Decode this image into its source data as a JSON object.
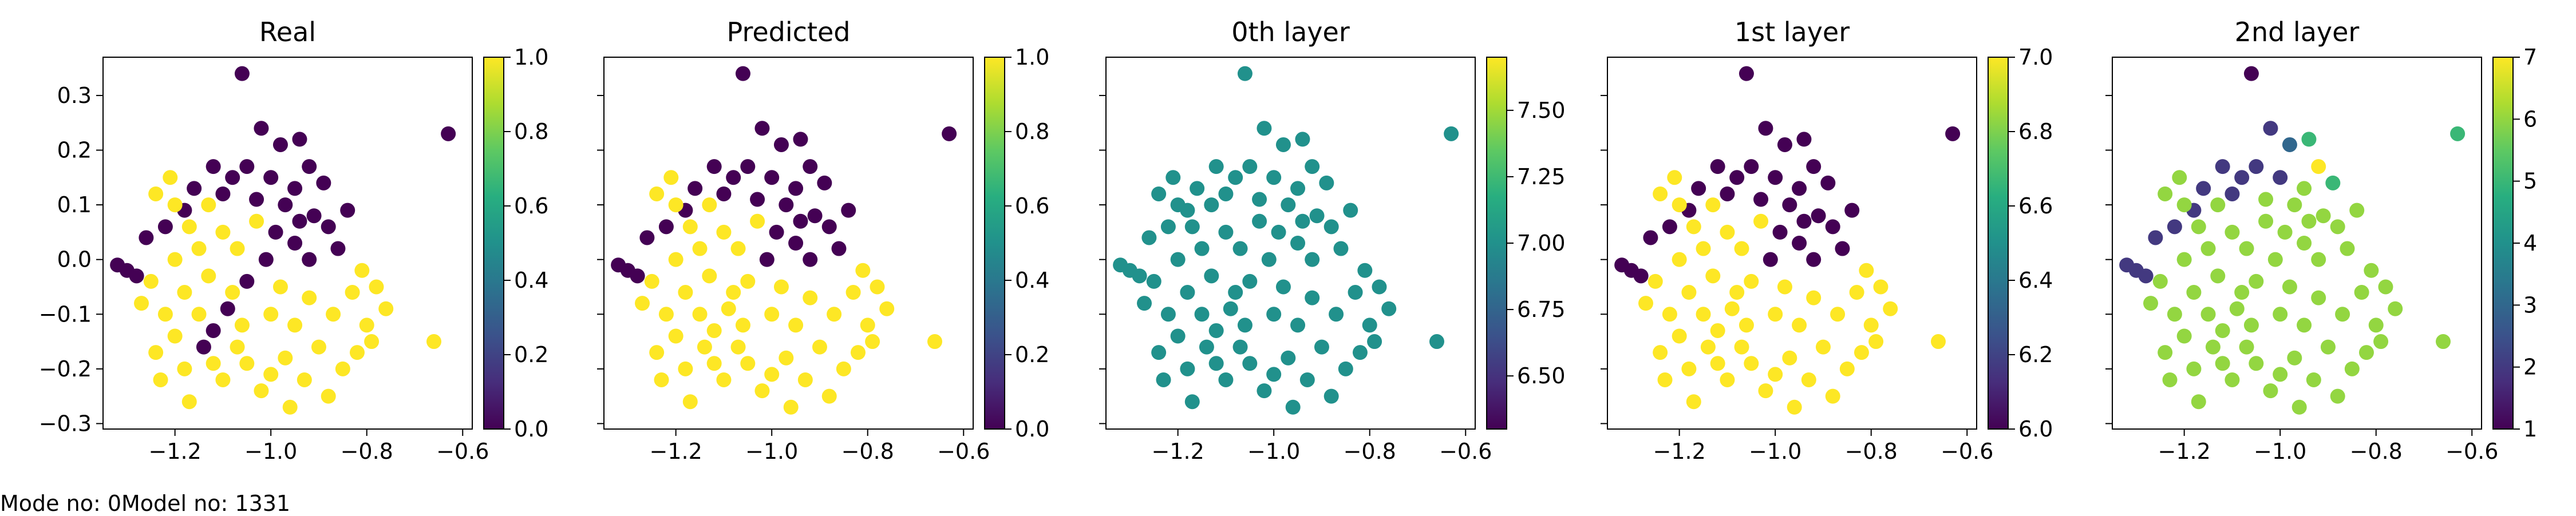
{
  "footer": {
    "mode_text": "Mode no: 0",
    "model_text": "Model no: 1331"
  },
  "chart_data": [
    {
      "type": "scatter",
      "title": "Real",
      "xlim": [
        -1.35,
        -0.58
      ],
      "ylim": [
        -0.31,
        0.37
      ],
      "xticks": [
        -1.2,
        -1.0,
        -0.8,
        -0.6
      ],
      "xtick_labels": [
        "−1.2",
        "−1.0",
        "−0.8",
        "−0.6"
      ],
      "yticks": [
        -0.3,
        -0.2,
        -0.1,
        0.0,
        0.1,
        0.2,
        0.3
      ],
      "ytick_labels": [
        "−0.3",
        "−0.2",
        "−0.1",
        "0.0",
        "0.1",
        "0.2",
        "0.3"
      ],
      "colorbar": {
        "range": [
          0.0,
          1.0
        ],
        "ticks": [
          0.0,
          0.2,
          0.4,
          0.6,
          0.8,
          1.0
        ],
        "tick_labels": [
          "0.0",
          "0.2",
          "0.4",
          "0.6",
          "0.8",
          "1.0"
        ]
      },
      "colormap": "viridis",
      "coloring": "real"
    },
    {
      "type": "scatter",
      "title": "Predicted",
      "xlim": [
        -1.35,
        -0.58
      ],
      "ylim": [
        -0.31,
        0.37
      ],
      "xticks": [
        -1.2,
        -1.0,
        -0.8,
        -0.6
      ],
      "xtick_labels": [
        "−1.2",
        "−1.0",
        "−0.8",
        "−0.6"
      ],
      "colorbar": {
        "range": [
          0.0,
          1.0
        ],
        "ticks": [
          0.0,
          0.2,
          0.4,
          0.6,
          0.8,
          1.0
        ],
        "tick_labels": [
          "0.0",
          "0.2",
          "0.4",
          "0.6",
          "0.8",
          "1.0"
        ]
      },
      "colormap": "viridis",
      "coloring": "predicted"
    },
    {
      "type": "scatter",
      "title": "0th layer",
      "xlim": [
        -1.35,
        -0.58
      ],
      "ylim": [
        -0.31,
        0.37
      ],
      "xticks": [
        -1.2,
        -1.0,
        -0.8,
        -0.6
      ],
      "xtick_labels": [
        "−1.2",
        "−1.0",
        "−0.8",
        "−0.6"
      ],
      "colorbar": {
        "range": [
          6.3,
          7.7
        ],
        "ticks": [
          6.5,
          6.75,
          7.0,
          7.25,
          7.5
        ],
        "tick_labels": [
          "6.50",
          "6.75",
          "7.00",
          "7.25",
          "7.50"
        ]
      },
      "colormap": "viridis",
      "coloring": "layer0"
    },
    {
      "type": "scatter",
      "title": "1st layer",
      "xlim": [
        -1.35,
        -0.58
      ],
      "ylim": [
        -0.31,
        0.37
      ],
      "xticks": [
        -1.2,
        -1.0,
        -0.8,
        -0.6
      ],
      "xtick_labels": [
        "−1.2",
        "−1.0",
        "−0.8",
        "−0.6"
      ],
      "colorbar": {
        "range": [
          6.0,
          7.0
        ],
        "ticks": [
          6.0,
          6.2,
          6.4,
          6.6,
          6.8,
          7.0
        ],
        "tick_labels": [
          "6.0",
          "6.2",
          "6.4",
          "6.6",
          "6.8",
          "7.0"
        ]
      },
      "colormap": "viridis",
      "coloring": "layer1"
    },
    {
      "type": "scatter",
      "title": "2nd layer",
      "xlim": [
        -1.35,
        -0.58
      ],
      "ylim": [
        -0.31,
        0.37
      ],
      "xticks": [
        -1.2,
        -1.0,
        -0.8,
        -0.6
      ],
      "xtick_labels": [
        "−1.2",
        "−1.0",
        "−0.8",
        "−0.6"
      ],
      "colorbar": {
        "range": [
          1,
          7
        ],
        "ticks": [
          1,
          2,
          3,
          4,
          5,
          6,
          7
        ],
        "tick_labels": [
          "1",
          "2",
          "3",
          "4",
          "5",
          "6",
          "7"
        ]
      },
      "colormap": "viridis",
      "coloring": "layer2"
    }
  ],
  "points": [
    {
      "x": -1.06,
      "y": 0.34,
      "real": 0,
      "pred": 0,
      "l0": 7.0,
      "l1": 6.0,
      "l2": 1
    },
    {
      "x": -0.63,
      "y": 0.23,
      "real": 0,
      "pred": 0,
      "l0": 7.0,
      "l1": 6.0,
      "l2": 5
    },
    {
      "x": -0.94,
      "y": 0.22,
      "real": 0,
      "pred": 0,
      "l0": 7.0,
      "l1": 6.0,
      "l2": 5
    },
    {
      "x": -0.98,
      "y": 0.21,
      "real": 0,
      "pred": 0,
      "l0": 7.0,
      "l1": 6.0,
      "l2": 3
    },
    {
      "x": -1.02,
      "y": 0.24,
      "real": 0,
      "pred": 0,
      "l0": 7.0,
      "l1": 6.0,
      "l2": 2
    },
    {
      "x": -0.92,
      "y": 0.17,
      "real": 0,
      "pred": 0,
      "l0": 7.0,
      "l1": 6.0,
      "l2": 7
    },
    {
      "x": -0.89,
      "y": 0.14,
      "real": 0,
      "pred": 0,
      "l0": 7.0,
      "l1": 6.0,
      "l2": 5
    },
    {
      "x": -0.95,
      "y": 0.13,
      "real": 0,
      "pred": 0,
      "l0": 7.0,
      "l1": 6.0,
      "l2": 6
    },
    {
      "x": -1.0,
      "y": 0.15,
      "real": 0,
      "pred": 0,
      "l0": 7.0,
      "l1": 6.0,
      "l2": 2
    },
    {
      "x": -1.05,
      "y": 0.17,
      "real": 0,
      "pred": 0,
      "l0": 7.0,
      "l1": 6.0,
      "l2": 2
    },
    {
      "x": -1.08,
      "y": 0.15,
      "real": 0,
      "pred": 0,
      "l0": 7.0,
      "l1": 6.0,
      "l2": 2
    },
    {
      "x": -1.12,
      "y": 0.17,
      "real": 0,
      "pred": 0,
      "l0": 7.0,
      "l1": 6.0,
      "l2": 2
    },
    {
      "x": -1.1,
      "y": 0.12,
      "real": 0,
      "pred": 0,
      "l0": 7.0,
      "l1": 6.0,
      "l2": 2
    },
    {
      "x": -1.16,
      "y": 0.13,
      "real": 0,
      "pred": 0,
      "l0": 7.0,
      "l1": 6.0,
      "l2": 2
    },
    {
      "x": -1.18,
      "y": 0.09,
      "real": 0,
      "pred": 0,
      "l0": 7.0,
      "l1": 6.0,
      "l2": 2
    },
    {
      "x": -1.22,
      "y": 0.06,
      "real": 0,
      "pred": 0,
      "l0": 7.0,
      "l1": 6.0,
      "l2": 2
    },
    {
      "x": -1.26,
      "y": 0.04,
      "real": 0,
      "pred": 0,
      "l0": 7.0,
      "l1": 6.0,
      "l2": 2
    },
    {
      "x": -1.3,
      "y": -0.02,
      "real": 0,
      "pred": 0,
      "l0": 7.0,
      "l1": 6.0,
      "l2": 2
    },
    {
      "x": -1.32,
      "y": -0.01,
      "real": 0,
      "pred": 0,
      "l0": 7.0,
      "l1": 6.0,
      "l2": 2
    },
    {
      "x": -1.28,
      "y": -0.03,
      "real": 0,
      "pred": 0,
      "l0": 7.0,
      "l1": 6.0,
      "l2": 2
    },
    {
      "x": -0.94,
      "y": 0.07,
      "real": 0,
      "pred": 0,
      "l0": 7.0,
      "l1": 6.0,
      "l2": 6
    },
    {
      "x": -0.91,
      "y": 0.08,
      "real": 0,
      "pred": 0,
      "l0": 7.0,
      "l1": 6.0,
      "l2": 6
    },
    {
      "x": -0.88,
      "y": 0.06,
      "real": 0,
      "pred": 0,
      "l0": 7.0,
      "l1": 6.0,
      "l2": 6
    },
    {
      "x": -0.97,
      "y": 0.1,
      "real": 0,
      "pred": 0,
      "l0": 7.0,
      "l1": 6.0,
      "l2": 6
    },
    {
      "x": -1.03,
      "y": 0.11,
      "real": 0,
      "pred": 0,
      "l0": 7.0,
      "l1": 6.0,
      "l2": 6
    },
    {
      "x": -0.95,
      "y": 0.03,
      "real": 0,
      "pred": 0,
      "l0": 7.0,
      "l1": 6.0,
      "l2": 6
    },
    {
      "x": -0.99,
      "y": 0.05,
      "real": 0,
      "pred": 0,
      "l0": 7.0,
      "l1": 6.0,
      "l2": 6
    },
    {
      "x": -0.92,
      "y": 0.0,
      "real": 0,
      "pred": 0,
      "l0": 7.0,
      "l1": 6.0,
      "l2": 6
    },
    {
      "x": -1.01,
      "y": 0.0,
      "real": 0,
      "pred": 0,
      "l0": 7.0,
      "l1": 6.0,
      "l2": 6
    },
    {
      "x": -1.05,
      "y": -0.04,
      "real": 0,
      "pred": 1,
      "l0": 7.0,
      "l1": 7.0,
      "l2": 6
    },
    {
      "x": -1.09,
      "y": -0.09,
      "real": 0,
      "pred": 1,
      "l0": 7.0,
      "l1": 7.0,
      "l2": 6
    },
    {
      "x": -1.12,
      "y": -0.13,
      "real": 0,
      "pred": 1,
      "l0": 7.0,
      "l1": 7.0,
      "l2": 6
    },
    {
      "x": -1.14,
      "y": -0.16,
      "real": 0,
      "pred": 1,
      "l0": 7.0,
      "l1": 7.0,
      "l2": 6
    },
    {
      "x": -0.86,
      "y": 0.02,
      "real": 0,
      "pred": 0,
      "l0": 7.0,
      "l1": 6.0,
      "l2": 6
    },
    {
      "x": -0.84,
      "y": 0.09,
      "real": 0,
      "pred": 0,
      "l0": 7.0,
      "l1": 6.0,
      "l2": 6
    },
    {
      "x": -1.15,
      "y": 0.02,
      "real": 1,
      "pred": 1,
      "l0": 7.0,
      "l1": 7.0,
      "l2": 6
    },
    {
      "x": -1.2,
      "y": 0.0,
      "real": 1,
      "pred": 1,
      "l0": 7.0,
      "l1": 7.0,
      "l2": 6
    },
    {
      "x": -1.25,
      "y": -0.04,
      "real": 1,
      "pred": 1,
      "l0": 7.0,
      "l1": 7.0,
      "l2": 6
    },
    {
      "x": -1.27,
      "y": -0.08,
      "real": 1,
      "pred": 1,
      "l0": 7.0,
      "l1": 7.0,
      "l2": 6
    },
    {
      "x": -1.22,
      "y": -0.1,
      "real": 1,
      "pred": 1,
      "l0": 7.0,
      "l1": 7.0,
      "l2": 6
    },
    {
      "x": -1.18,
      "y": -0.06,
      "real": 1,
      "pred": 1,
      "l0": 7.0,
      "l1": 7.0,
      "l2": 6
    },
    {
      "x": -1.13,
      "y": -0.03,
      "real": 1,
      "pred": 1,
      "l0": 7.0,
      "l1": 7.0,
      "l2": 6
    },
    {
      "x": -1.1,
      "y": 0.05,
      "real": 1,
      "pred": 1,
      "l0": 7.0,
      "l1": 7.0,
      "l2": 6
    },
    {
      "x": -1.07,
      "y": 0.02,
      "real": 1,
      "pred": 1,
      "l0": 7.0,
      "l1": 7.0,
      "l2": 6
    },
    {
      "x": -1.17,
      "y": 0.06,
      "real": 1,
      "pred": 1,
      "l0": 7.0,
      "l1": 7.0,
      "l2": 6
    },
    {
      "x": -1.2,
      "y": 0.1,
      "real": 1,
      "pred": 1,
      "l0": 7.0,
      "l1": 7.0,
      "l2": 6
    },
    {
      "x": -1.24,
      "y": 0.12,
      "real": 1,
      "pred": 1,
      "l0": 7.0,
      "l1": 7.0,
      "l2": 6
    },
    {
      "x": -1.21,
      "y": 0.15,
      "real": 1,
      "pred": 1,
      "l0": 7.0,
      "l1": 7.0,
      "l2": 6
    },
    {
      "x": -1.2,
      "y": -0.14,
      "real": 1,
      "pred": 1,
      "l0": 7.0,
      "l1": 7.0,
      "l2": 6
    },
    {
      "x": -1.24,
      "y": -0.17,
      "real": 1,
      "pred": 1,
      "l0": 7.0,
      "l1": 7.0,
      "l2": 6
    },
    {
      "x": -1.18,
      "y": -0.2,
      "real": 1,
      "pred": 1,
      "l0": 7.0,
      "l1": 7.0,
      "l2": 6
    },
    {
      "x": -1.23,
      "y": -0.22,
      "real": 1,
      "pred": 1,
      "l0": 7.0,
      "l1": 7.0,
      "l2": 6
    },
    {
      "x": -1.17,
      "y": -0.26,
      "real": 1,
      "pred": 1,
      "l0": 7.0,
      "l1": 7.0,
      "l2": 6
    },
    {
      "x": -1.1,
      "y": -0.22,
      "real": 1,
      "pred": 1,
      "l0": 7.0,
      "l1": 7.0,
      "l2": 6
    },
    {
      "x": -1.05,
      "y": -0.19,
      "real": 1,
      "pred": 1,
      "l0": 7.0,
      "l1": 7.0,
      "l2": 6
    },
    {
      "x": -1.02,
      "y": -0.24,
      "real": 1,
      "pred": 1,
      "l0": 7.0,
      "l1": 7.0,
      "l2": 6
    },
    {
      "x": -0.96,
      "y": -0.27,
      "real": 1,
      "pred": 1,
      "l0": 7.0,
      "l1": 7.0,
      "l2": 6
    },
    {
      "x": -0.93,
      "y": -0.22,
      "real": 1,
      "pred": 1,
      "l0": 7.0,
      "l1": 7.0,
      "l2": 6
    },
    {
      "x": -0.88,
      "y": -0.25,
      "real": 1,
      "pred": 1,
      "l0": 7.0,
      "l1": 7.0,
      "l2": 6
    },
    {
      "x": -0.85,
      "y": -0.2,
      "real": 1,
      "pred": 1,
      "l0": 7.0,
      "l1": 7.0,
      "l2": 6
    },
    {
      "x": -0.9,
      "y": -0.16,
      "real": 1,
      "pred": 1,
      "l0": 7.0,
      "l1": 7.0,
      "l2": 6
    },
    {
      "x": -0.95,
      "y": -0.12,
      "real": 1,
      "pred": 1,
      "l0": 7.0,
      "l1": 7.0,
      "l2": 6
    },
    {
      "x": -1.0,
      "y": -0.1,
      "real": 1,
      "pred": 1,
      "l0": 7.0,
      "l1": 7.0,
      "l2": 6
    },
    {
      "x": -0.98,
      "y": -0.05,
      "real": 1,
      "pred": 1,
      "l0": 7.0,
      "l1": 7.0,
      "l2": 6
    },
    {
      "x": -0.92,
      "y": -0.07,
      "real": 1,
      "pred": 1,
      "l0": 7.0,
      "l1": 7.0,
      "l2": 6
    },
    {
      "x": -0.87,
      "y": -0.1,
      "real": 1,
      "pred": 1,
      "l0": 7.0,
      "l1": 7.0,
      "l2": 6
    },
    {
      "x": -0.83,
      "y": -0.06,
      "real": 1,
      "pred": 1,
      "l0": 7.0,
      "l1": 7.0,
      "l2": 6
    },
    {
      "x": -0.8,
      "y": -0.12,
      "real": 1,
      "pred": 1,
      "l0": 7.0,
      "l1": 7.0,
      "l2": 6
    },
    {
      "x": -0.78,
      "y": -0.05,
      "real": 1,
      "pred": 1,
      "l0": 7.0,
      "l1": 7.0,
      "l2": 6
    },
    {
      "x": -0.81,
      "y": -0.02,
      "real": 1,
      "pred": 1,
      "l0": 7.0,
      "l1": 7.0,
      "l2": 6
    },
    {
      "x": -0.76,
      "y": -0.09,
      "real": 1,
      "pred": 1,
      "l0": 7.0,
      "l1": 7.0,
      "l2": 6
    },
    {
      "x": -0.82,
      "y": -0.17,
      "real": 1,
      "pred": 1,
      "l0": 7.0,
      "l1": 7.0,
      "l2": 6
    },
    {
      "x": -0.66,
      "y": -0.15,
      "real": 1,
      "pred": 1,
      "l0": 7.0,
      "l1": 7.0,
      "l2": 6
    },
    {
      "x": -1.06,
      "y": -0.12,
      "real": 1,
      "pred": 1,
      "l0": 7.0,
      "l1": 7.0,
      "l2": 6
    },
    {
      "x": -1.15,
      "y": -0.1,
      "real": 1,
      "pred": 1,
      "l0": 7.0,
      "l1": 7.0,
      "l2": 6
    },
    {
      "x": -1.12,
      "y": -0.19,
      "real": 1,
      "pred": 1,
      "l0": 7.0,
      "l1": 7.0,
      "l2": 6
    },
    {
      "x": -1.03,
      "y": 0.07,
      "real": 1,
      "pred": 1,
      "l0": 7.0,
      "l1": 7.0,
      "l2": 6
    },
    {
      "x": -1.13,
      "y": 0.1,
      "real": 1,
      "pred": 1,
      "l0": 7.0,
      "l1": 7.0,
      "l2": 6
    },
    {
      "x": -1.08,
      "y": -0.06,
      "real": 1,
      "pred": 1,
      "l0": 7.0,
      "l1": 7.0,
      "l2": 6
    },
    {
      "x": -0.97,
      "y": -0.18,
      "real": 1,
      "pred": 1,
      "l0": 7.0,
      "l1": 7.0,
      "l2": 6
    },
    {
      "x": -1.0,
      "y": -0.21,
      "real": 1,
      "pred": 1,
      "l0": 7.0,
      "l1": 7.0,
      "l2": 6
    },
    {
      "x": -1.07,
      "y": -0.16,
      "real": 1,
      "pred": 1,
      "l0": 7.0,
      "l1": 7.0,
      "l2": 6
    },
    {
      "x": -0.79,
      "y": -0.15,
      "real": 1,
      "pred": 1,
      "l0": 7.0,
      "l1": 7.0,
      "l2": 6
    }
  ]
}
